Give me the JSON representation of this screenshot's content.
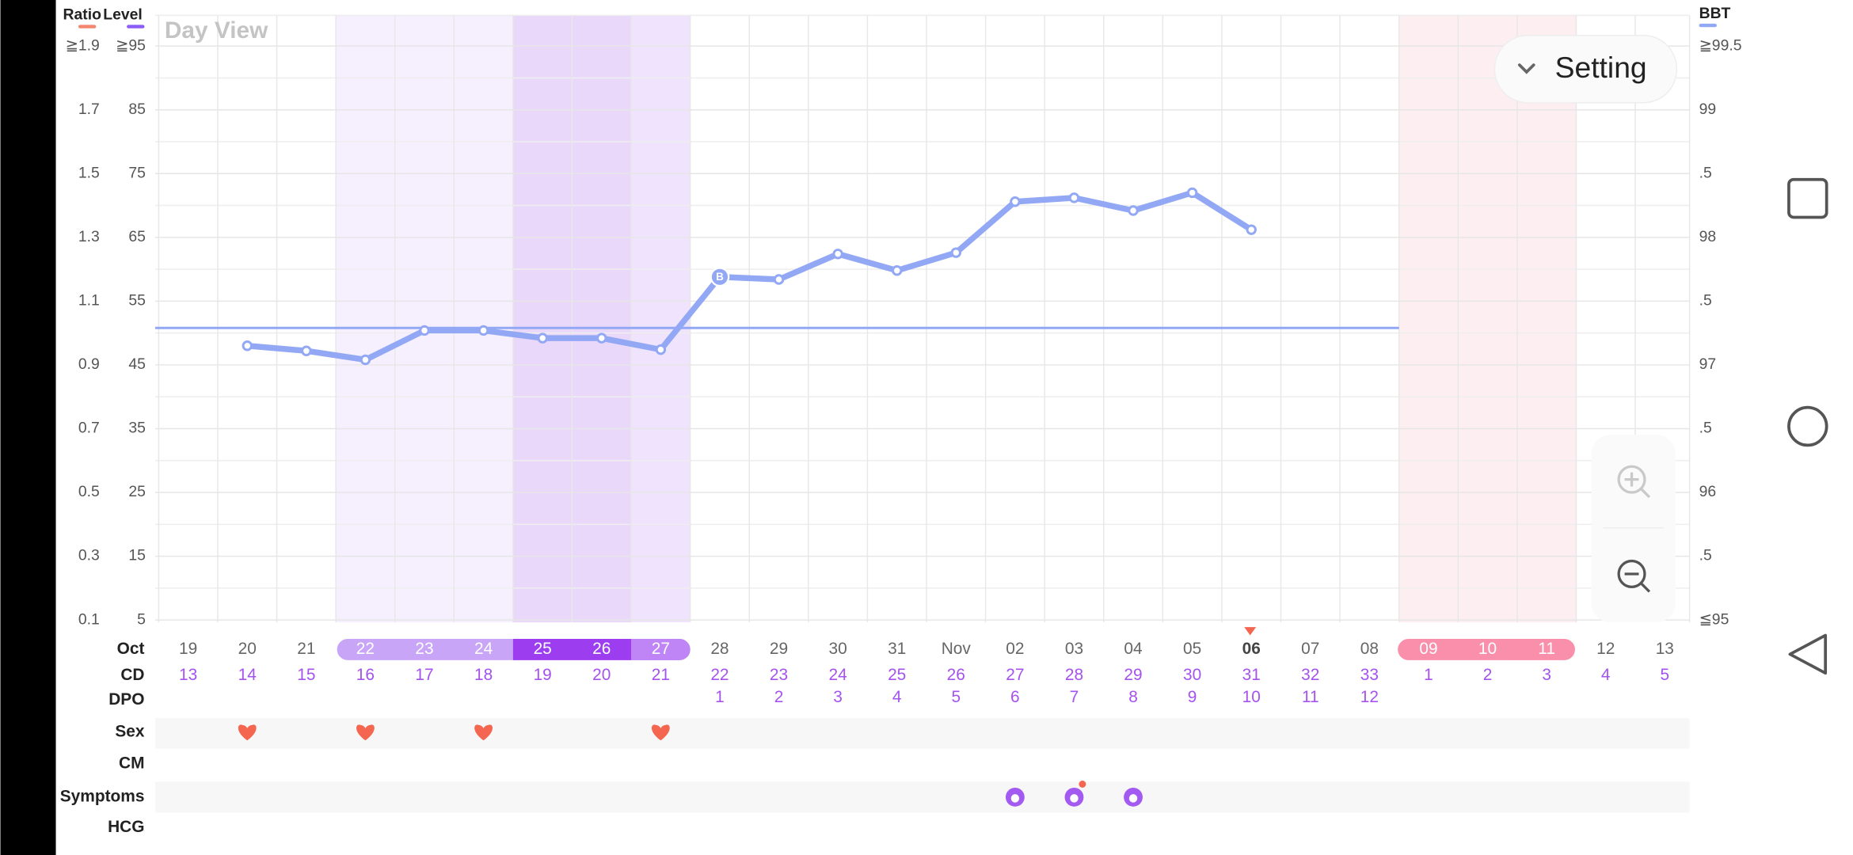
{
  "header": {
    "ratio_label": "Ratio",
    "level_label": "Level",
    "title": "Day View",
    "bbt_label": "BBT",
    "setting": "Setting"
  },
  "chart_data": {
    "type": "line",
    "categories": [
      "19",
      "20",
      "21",
      "22",
      "23",
      "24",
      "25",
      "26",
      "27",
      "28",
      "29",
      "30",
      "31",
      "Nov",
      "02",
      "03",
      "04",
      "05",
      "06",
      "07",
      "08",
      "09",
      "10",
      "11",
      "12",
      "13"
    ],
    "series": [
      {
        "name": "BBT",
        "color": "#93a8f5",
        "values": [
          null,
          97.15,
          97.11,
          97.04,
          97.27,
          97.27,
          97.21,
          97.21,
          97.12,
          97.69,
          97.67,
          97.87,
          97.74,
          97.88,
          98.28,
          98.31,
          98.21,
          98.35,
          98.06,
          null,
          null,
          null,
          null,
          null,
          null,
          null
        ]
      }
    ],
    "coverline": 97.29,
    "b_label": "B",
    "ylim": [
      95,
      99.5
    ],
    "yticks": [
      {
        "value": 99.5,
        "label": "≧99.5"
      },
      99,
      {
        "value": 98.5,
        "label": ".5"
      },
      98,
      {
        "value": 97.5,
        "label": ".5"
      },
      97,
      {
        "value": 96.5,
        "label": ".5"
      },
      96,
      {
        "value": 95.5,
        "label": ".5"
      },
      {
        "value": 95,
        "label": "≦95"
      }
    ],
    "ratio_lim": [
      0.1,
      1.9
    ],
    "ratio_ticks": [
      {
        "value": 1.9,
        "label": "≧1.9"
      },
      1.7,
      1.5,
      1.3,
      1.1,
      0.9,
      0.7,
      0.5,
      0.3,
      0.1
    ],
    "level_lim": [
      5,
      95
    ],
    "level_ticks": [
      {
        "value": 95,
        "label": "≧95"
      },
      85,
      75,
      65,
      55,
      45,
      35,
      25,
      15,
      5
    ],
    "grid": true,
    "cd": [
      13,
      14,
      15,
      16,
      17,
      18,
      19,
      20,
      21,
      22,
      23,
      24,
      25,
      26,
      27,
      28,
      29,
      30,
      31,
      32,
      33,
      1,
      2,
      3,
      4,
      5
    ],
    "dpo": [
      null,
      null,
      null,
      null,
      null,
      null,
      null,
      null,
      null,
      1,
      2,
      3,
      4,
      5,
      6,
      7,
      8,
      9,
      10,
      11,
      12,
      null,
      null,
      null,
      null,
      null
    ],
    "sex": [
      false,
      true,
      false,
      true,
      false,
      true,
      false,
      false,
      true,
      false,
      false,
      false,
      false,
      false,
      false,
      false,
      false,
      false,
      false,
      false,
      false,
      false,
      false,
      false,
      false,
      false
    ],
    "symptoms": [
      false,
      false,
      false,
      false,
      false,
      false,
      false,
      false,
      false,
      false,
      false,
      false,
      false,
      false,
      true,
      true,
      true,
      false,
      false,
      false,
      false,
      false,
      false,
      false,
      false,
      false
    ]
  },
  "rows": {
    "month": "Oct",
    "cd": "CD",
    "dpo": "DPO",
    "sex": "Sex",
    "cm": "CM",
    "symptoms": "Symptoms",
    "hcg": "HCG"
  }
}
